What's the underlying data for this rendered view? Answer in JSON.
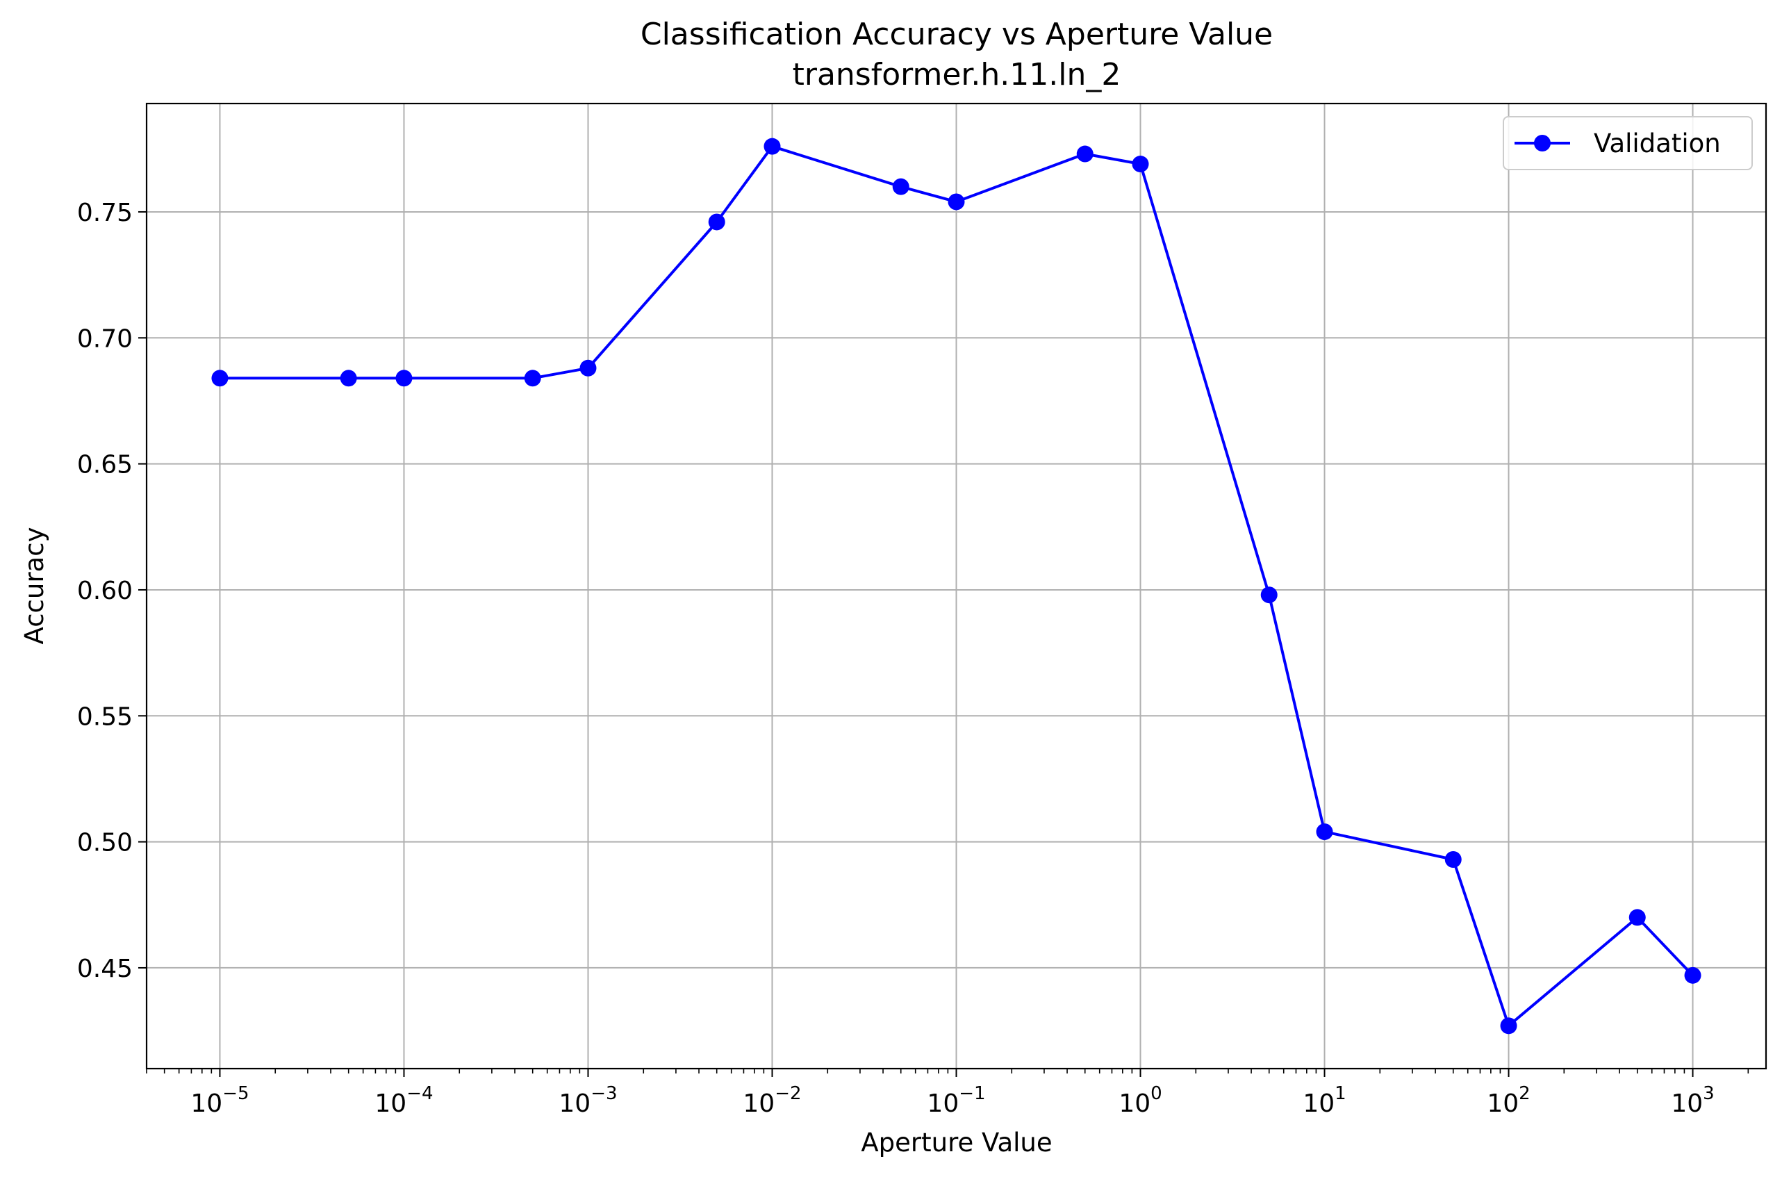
{
  "chart_data": {
    "type": "line",
    "title": "Classification Accuracy vs Aperture Value",
    "subtitle": "transformer.h.11.ln_2",
    "xlabel": "Aperture Value",
    "ylabel": "Accuracy",
    "xscale": "log",
    "xlim": [
      4e-06,
      2500
    ],
    "ylim": [
      0.41,
      0.793
    ],
    "grid": true,
    "legend_position": "top-right",
    "x_ticks": [
      {
        "base": "10",
        "exp": "−5",
        "value": 1e-05
      },
      {
        "base": "10",
        "exp": "−4",
        "value": 0.0001
      },
      {
        "base": "10",
        "exp": "−3",
        "value": 0.001
      },
      {
        "base": "10",
        "exp": "−2",
        "value": 0.01
      },
      {
        "base": "10",
        "exp": "−1",
        "value": 0.1
      },
      {
        "base": "10",
        "exp": "0",
        "value": 1
      },
      {
        "base": "10",
        "exp": "1",
        "value": 10
      },
      {
        "base": "10",
        "exp": "2",
        "value": 100
      },
      {
        "base": "10",
        "exp": "3",
        "value": 1000
      }
    ],
    "y_ticks": [
      "0.45",
      "0.50",
      "0.55",
      "0.60",
      "0.65",
      "0.70",
      "0.75"
    ],
    "series": [
      {
        "name": "Validation",
        "color": "#0000ff",
        "marker": "circle",
        "x": [
          1e-05,
          5e-05,
          0.0001,
          0.0005,
          0.001,
          0.005,
          0.01,
          0.05,
          0.1,
          0.5,
          1,
          5,
          10,
          50,
          100,
          500,
          1000
        ],
        "y": [
          0.684,
          0.684,
          0.684,
          0.684,
          0.688,
          0.746,
          0.776,
          0.76,
          0.754,
          0.773,
          0.769,
          0.598,
          0.504,
          0.493,
          0.427,
          0.47,
          0.447
        ]
      }
    ]
  }
}
